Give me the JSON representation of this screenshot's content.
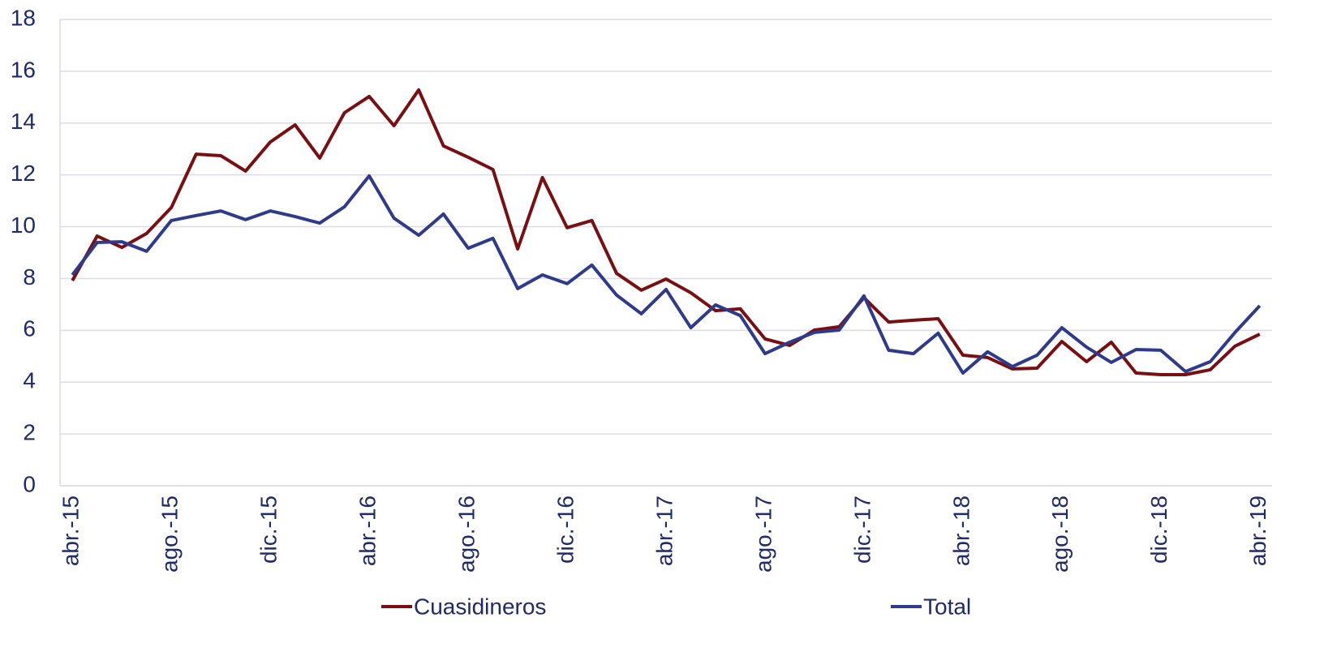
{
  "chart_data": {
    "type": "line",
    "categories": [
      "abr.-15",
      null,
      null,
      null,
      "ago.-15",
      null,
      null,
      null,
      "dic.-15",
      null,
      null,
      null,
      "abr.-16",
      null,
      null,
      null,
      "ago.-16",
      null,
      null,
      null,
      "dic.-16",
      null,
      null,
      null,
      "abr.-17",
      null,
      null,
      null,
      "ago.-17",
      null,
      null,
      null,
      "dic.-17",
      null,
      null,
      null,
      "abr.-18",
      null,
      null,
      null,
      "ago.-18",
      null,
      null,
      null,
      "dic.-18",
      null,
      null,
      null,
      "abr.-19"
    ],
    "series": [
      {
        "name": "Cuasidineros",
        "color": "#7a0f12",
        "values": [
          7.92,
          9.64,
          9.2,
          9.74,
          10.74,
          12.8,
          12.74,
          12.15,
          13.27,
          13.93,
          12.65,
          14.4,
          15.03,
          13.9,
          15.28,
          13.12,
          12.68,
          12.21,
          9.14,
          11.9,
          9.96,
          10.24,
          8.2,
          7.55,
          7.98,
          7.45,
          6.76,
          6.83,
          5.67,
          5.42,
          6.01,
          6.14,
          7.26,
          6.32,
          6.39,
          6.45,
          5.04,
          4.95,
          4.51,
          4.54,
          5.57,
          4.79,
          5.54,
          4.35,
          4.29,
          4.29,
          4.48,
          5.39,
          5.85
        ]
      },
      {
        "name": "Total",
        "color": "#2e3a8c",
        "values": [
          8.14,
          9.39,
          9.42,
          9.05,
          10.24,
          10.43,
          10.61,
          10.27,
          10.61,
          10.39,
          10.14,
          10.77,
          11.96,
          10.33,
          9.67,
          10.49,
          9.17,
          9.55,
          7.61,
          8.14,
          7.8,
          8.52,
          7.36,
          6.64,
          7.58,
          6.1,
          6.98,
          6.57,
          5.1,
          5.54,
          5.92,
          6.01,
          7.33,
          5.23,
          5.1,
          5.89,
          4.35,
          5.17,
          4.6,
          5.04,
          6.1,
          5.35,
          4.76,
          5.26,
          5.23,
          4.41,
          4.79,
          5.92,
          6.95
        ]
      }
    ],
    "ylim": [
      0,
      18
    ],
    "yticks": [
      0,
      2,
      4,
      6,
      8,
      10,
      12,
      14,
      16,
      18
    ],
    "grid": true,
    "legend": "bottom"
  }
}
